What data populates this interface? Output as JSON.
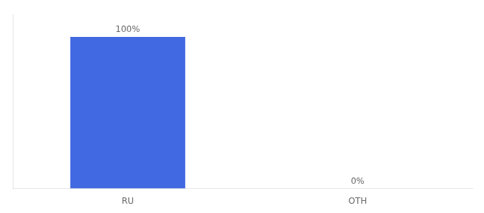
{
  "chart_data": {
    "type": "bar",
    "categories": [
      "RU",
      "OTH"
    ],
    "values": [
      100,
      0
    ],
    "value_labels": [
      "100%",
      "0%"
    ],
    "data_labels": true,
    "color": "#4169E1",
    "ylim": [
      0,
      115
    ],
    "grid": false,
    "tick_labels": "x"
  }
}
